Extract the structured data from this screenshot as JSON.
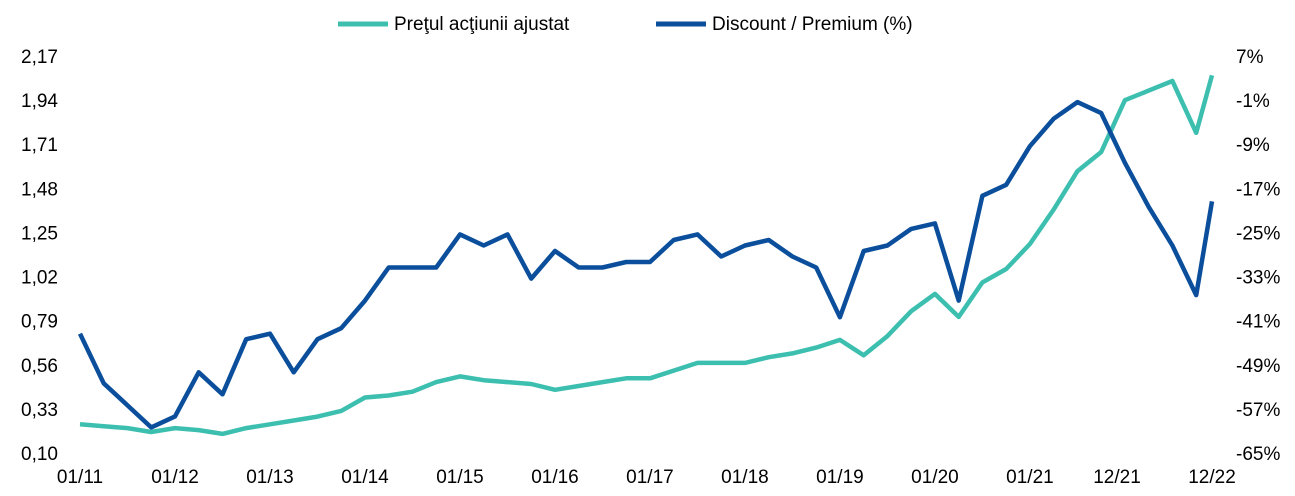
{
  "chart_data": {
    "type": "line",
    "x": [
      0,
      3,
      6,
      9,
      12,
      15,
      18,
      21,
      24,
      27,
      30,
      33,
      36,
      39,
      42,
      45,
      48,
      51,
      54,
      57,
      60,
      63,
      66,
      69,
      72,
      75,
      78,
      81,
      84,
      87,
      90,
      93,
      96,
      99,
      102,
      105,
      108,
      111,
      114,
      117,
      120,
      123,
      126,
      129,
      132,
      135,
      138,
      141,
      143
    ],
    "series": [
      {
        "name": "Preţul acţiunii ajustat",
        "color": "#3dbfb0",
        "axis": "y",
        "values": [
          0.26,
          0.25,
          0.24,
          0.22,
          0.24,
          0.23,
          0.21,
          0.24,
          0.26,
          0.28,
          0.3,
          0.33,
          0.4,
          0.41,
          0.43,
          0.48,
          0.51,
          0.49,
          0.48,
          0.47,
          0.44,
          0.46,
          0.48,
          0.5,
          0.5,
          0.54,
          0.58,
          0.58,
          0.58,
          0.61,
          0.63,
          0.66,
          0.7,
          0.62,
          0.72,
          0.85,
          0.94,
          0.82,
          1.0,
          1.07,
          1.2,
          1.38,
          1.58,
          1.68,
          1.95,
          2.0,
          2.05,
          1.78,
          2.08
        ]
      },
      {
        "name": "Discount / Premium (%)",
        "color": "#0b4f9c",
        "axis": "y2",
        "values": [
          -43,
          -52,
          -56,
          -60,
          -58,
          -50,
          -54,
          -44,
          -43,
          -50,
          -44,
          -42,
          -37,
          -31,
          -31,
          -31,
          -25,
          -27,
          -25,
          -33,
          -28,
          -31,
          -31,
          -30,
          -30,
          -26,
          -25,
          -29,
          -27,
          -26,
          -29,
          -31,
          -40,
          -28,
          -27,
          -24,
          -23,
          -37,
          -18,
          -16,
          -9,
          -4,
          -1,
          -3,
          -12,
          -20,
          -27,
          -36,
          -19
        ]
      }
    ],
    "xlim": [
      0,
      143
    ],
    "xticks": [
      {
        "value": 0,
        "label": "01/11"
      },
      {
        "value": 12,
        "label": "01/12"
      },
      {
        "value": 24,
        "label": "01/13"
      },
      {
        "value": 36,
        "label": "01/14"
      },
      {
        "value": 48,
        "label": "01/15"
      },
      {
        "value": 60,
        "label": "01/16"
      },
      {
        "value": 72,
        "label": "01/17"
      },
      {
        "value": 84,
        "label": "01/18"
      },
      {
        "value": 96,
        "label": "01/19"
      },
      {
        "value": 108,
        "label": "01/20"
      },
      {
        "value": 120,
        "label": "01/21"
      },
      {
        "value": 131,
        "label": "12/21"
      },
      {
        "value": 143,
        "label": "12/22"
      }
    ],
    "ylim": [
      0.1,
      2.17
    ],
    "yticks": [
      {
        "value": 0.1,
        "label": "0,10"
      },
      {
        "value": 0.33,
        "label": "0,33"
      },
      {
        "value": 0.56,
        "label": "0,56"
      },
      {
        "value": 0.79,
        "label": "0,79"
      },
      {
        "value": 1.02,
        "label": "1,02"
      },
      {
        "value": 1.25,
        "label": "1,25"
      },
      {
        "value": 1.48,
        "label": "1,48"
      },
      {
        "value": 1.71,
        "label": "1,71"
      },
      {
        "value": 1.94,
        "label": "1,94"
      },
      {
        "value": 2.17,
        "label": "2,17"
      }
    ],
    "y2lim": [
      -65,
      7
    ],
    "y2ticks": [
      {
        "value": -65,
        "label": "-65%"
      },
      {
        "value": -57,
        "label": "-57%"
      },
      {
        "value": -49,
        "label": "-49%"
      },
      {
        "value": -41,
        "label": "-41%"
      },
      {
        "value": -33,
        "label": "-33%"
      },
      {
        "value": -25,
        "label": "-25%"
      },
      {
        "value": -17,
        "label": "-17%"
      },
      {
        "value": -9,
        "label": "-9%"
      },
      {
        "value": -1,
        "label": "-1%"
      },
      {
        "value": 7,
        "label": "7%"
      }
    ],
    "grid": false,
    "legend": "top"
  }
}
